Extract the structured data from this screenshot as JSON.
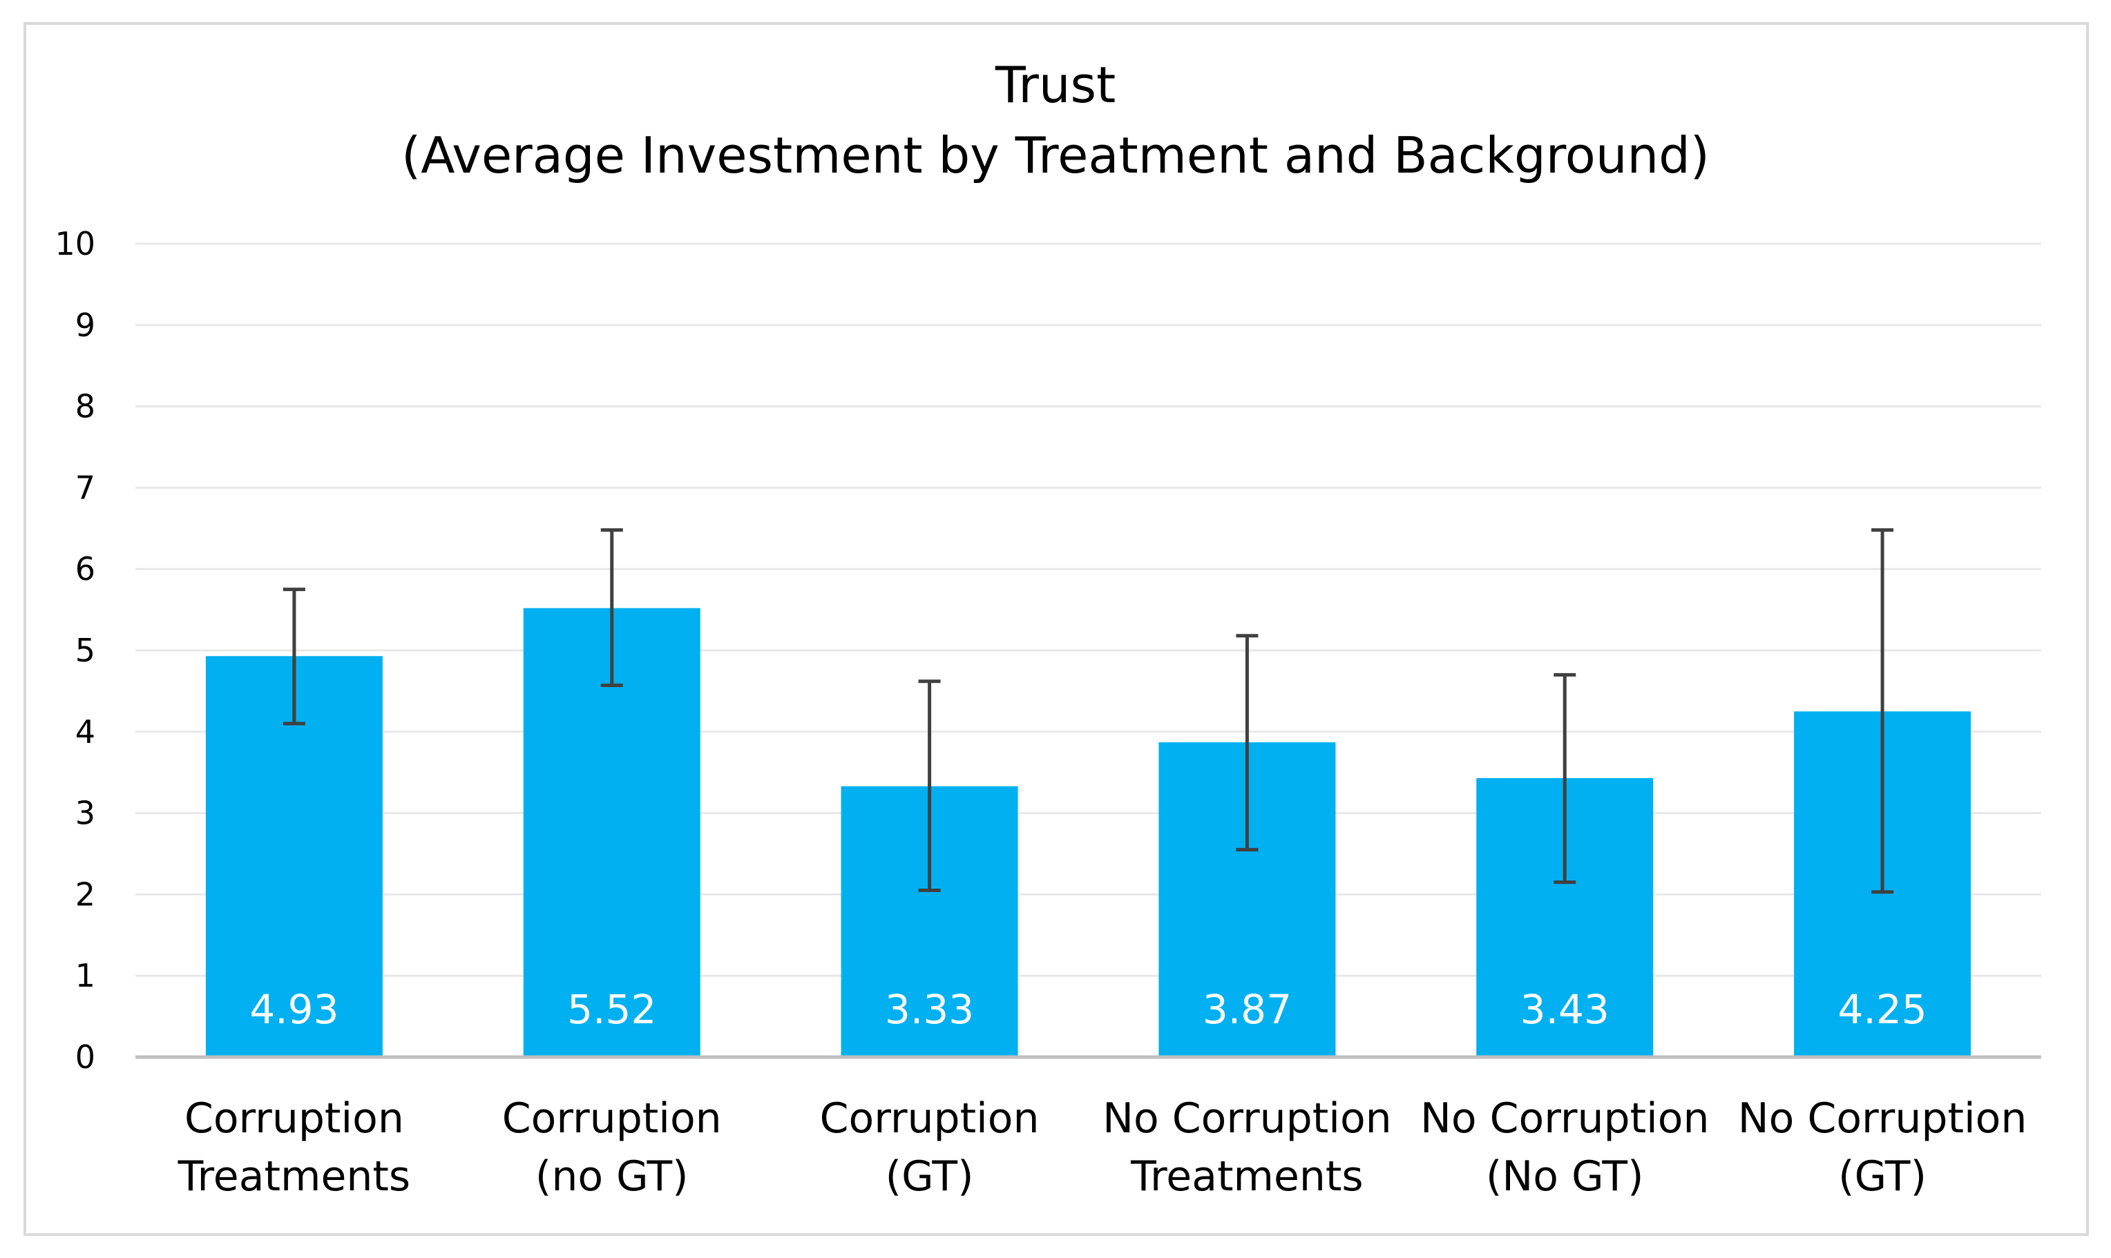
{
  "chart_data": {
    "type": "bar",
    "title": [
      "Trust",
      "(Average Investment by Treatment and Background)"
    ],
    "categories": [
      [
        "Corruption",
        "Treatments"
      ],
      [
        "Corruption",
        "(no GT)"
      ],
      [
        "Corruption",
        "(GT)"
      ],
      [
        "No Corruption",
        "Treatments"
      ],
      [
        "No Corruption",
        "(No GT)"
      ],
      [
        "No Corruption",
        "(GT)"
      ]
    ],
    "values": [
      4.93,
      5.52,
      3.33,
      3.87,
      3.43,
      4.25
    ],
    "data_labels": [
      "4.93",
      "5.52",
      "3.33",
      "3.87",
      "3.43",
      "4.25"
    ],
    "error_bars": [
      [
        4.1,
        5.75
      ],
      [
        4.57,
        6.48
      ],
      [
        2.05,
        4.62
      ],
      [
        2.55,
        5.18
      ],
      [
        2.15,
        4.7
      ],
      [
        2.03,
        6.48
      ]
    ],
    "yticks": [
      "0",
      "1",
      "2",
      "3",
      "4",
      "5",
      "6",
      "7",
      "8",
      "9",
      "10"
    ],
    "ylim": [
      0,
      10
    ],
    "grid": true,
    "legend": "none",
    "xlabel": "",
    "ylabel": "",
    "colors": {
      "bar": "#00b0f0",
      "error_bar": "#404040",
      "grid": "#e8e8e8",
      "axis": "#bfbfbf",
      "border": "#d9d9d9"
    }
  }
}
